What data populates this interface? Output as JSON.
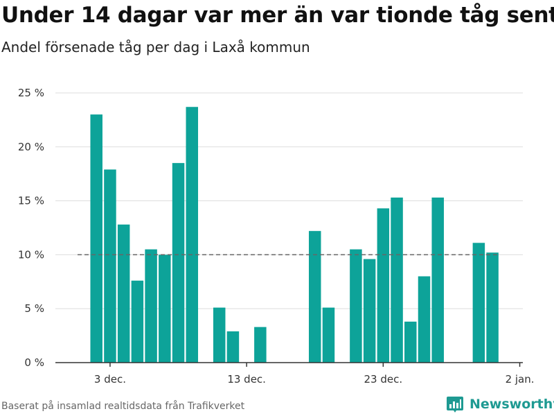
{
  "title": "Under 14 dagar var mer än var tionde tåg sent",
  "subtitle": "Andel försenade tåg per dag i Laxå kommun",
  "footer": "Baserat på insamlad realtidsdata från Trafikverket",
  "brand": "Newsworthy",
  "colors": {
    "bar": "#0da399",
    "grid": "#dddddd",
    "reference": "#666666",
    "brand": "#1e9a92"
  },
  "chart_data": {
    "type": "bar",
    "x_start_date": "2023-12-01",
    "x": [
      "2023-12-01",
      "2023-12-02",
      "2023-12-03",
      "2023-12-04",
      "2023-12-05",
      "2023-12-06",
      "2023-12-07",
      "2023-12-08",
      "2023-12-09",
      "2023-12-10",
      "2023-12-11",
      "2023-12-12",
      "2023-12-13",
      "2023-12-14",
      "2023-12-15",
      "2023-12-16",
      "2023-12-17",
      "2023-12-18",
      "2023-12-19",
      "2023-12-20",
      "2023-12-21",
      "2023-12-22",
      "2023-12-23",
      "2023-12-24",
      "2023-12-25",
      "2023-12-26",
      "2023-12-27",
      "2023-12-28",
      "2023-12-29",
      "2023-12-30",
      "2023-12-31"
    ],
    "values": [
      null,
      23.0,
      17.9,
      12.8,
      7.6,
      10.5,
      10.0,
      18.5,
      23.7,
      null,
      5.1,
      2.9,
      null,
      3.3,
      null,
      null,
      null,
      12.2,
      5.1,
      null,
      10.5,
      9.6,
      14.3,
      15.3,
      3.8,
      8.0,
      15.3,
      null,
      null,
      11.1,
      10.2
    ],
    "ylim": [
      0,
      25
    ],
    "yticks": [
      0,
      5,
      10,
      15,
      20,
      25
    ],
    "ytick_labels": [
      "0 %",
      "5 %",
      "10 %",
      "15 %",
      "20 %",
      "25 %"
    ],
    "xticks": [
      "3 dec.",
      "13 dec.",
      "23 dec.",
      "2 jan."
    ],
    "reference_line": 10,
    "grid": true
  }
}
